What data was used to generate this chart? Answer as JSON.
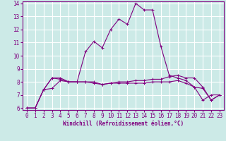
{
  "xlabel": "Windchill (Refroidissement éolien,°C)",
  "background_color": "#cceae7",
  "grid_color": "#ffffff",
  "line_color": "#800080",
  "x_hours": [
    0,
    1,
    2,
    3,
    4,
    5,
    6,
    7,
    8,
    9,
    10,
    11,
    12,
    13,
    14,
    15,
    16,
    17,
    18,
    19,
    20,
    21,
    22,
    23
  ],
  "series1": [
    6.0,
    6.0,
    7.4,
    8.3,
    8.3,
    8.0,
    8.0,
    10.3,
    11.1,
    10.6,
    12.0,
    12.8,
    12.4,
    14.0,
    13.5,
    13.5,
    10.7,
    8.5,
    8.3,
    8.1,
    7.6,
    6.6,
    7.0,
    7.0
  ],
  "series2": [
    6.0,
    6.0,
    7.4,
    8.3,
    8.2,
    8.0,
    8.0,
    8.0,
    8.0,
    7.8,
    7.9,
    8.0,
    8.0,
    8.1,
    8.1,
    8.2,
    8.2,
    8.4,
    8.5,
    8.3,
    8.3,
    7.6,
    6.6,
    7.0
  ],
  "series3": [
    6.0,
    6.0,
    7.4,
    7.5,
    8.1,
    8.0,
    8.0,
    8.0,
    7.9,
    7.8,
    7.9,
    7.9,
    7.9,
    7.9,
    7.9,
    8.0,
    8.0,
    8.0,
    8.1,
    7.9,
    7.6,
    7.5,
    6.6,
    7.0
  ],
  "ylim": [
    6,
    14
  ],
  "xlim": [
    0,
    23
  ],
  "yticks": [
    6,
    7,
    8,
    9,
    10,
    11,
    12,
    13,
    14
  ],
  "xticks": [
    0,
    1,
    2,
    3,
    4,
    5,
    6,
    7,
    8,
    9,
    10,
    11,
    12,
    13,
    14,
    15,
    16,
    17,
    18,
    19,
    20,
    21,
    22,
    23
  ],
  "ylabel_fontsize": 5.5,
  "xlabel_fontsize": 5.5,
  "tick_fontsize": 5.5
}
